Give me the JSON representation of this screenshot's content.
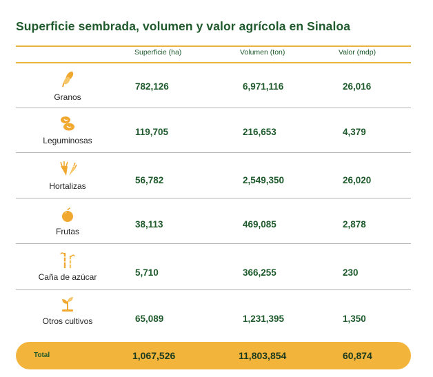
{
  "title": "Superficie sembrada, volumen y valor agrícola en Sinaloa",
  "columns": {
    "superficie": "Superficie (ha)",
    "volumen": "Volumen (ton)",
    "valor": "Valor (mdp)"
  },
  "rows": [
    {
      "label": "Granos",
      "icon": "wheat-grain-icon",
      "superficie": "782,126",
      "volumen": "6,971,116",
      "valor": "26,016"
    },
    {
      "label": "Leguminosas",
      "icon": "beans-icon",
      "superficie": "119,705",
      "volumen": "216,653",
      "valor": "4,379"
    },
    {
      "label": "Hortalizas",
      "icon": "vegetables-icon",
      "superficie": "56,782",
      "volumen": "2,549,350",
      "valor": "26,020"
    },
    {
      "label": "Frutas",
      "icon": "fruit-icon",
      "superficie": "38,113",
      "volumen": "469,085",
      "valor": "2,878"
    },
    {
      "label": "Caña de azúcar",
      "icon": "sugar-cane-icon",
      "superficie": "5,710",
      "volumen": "366,255",
      "valor": "230"
    },
    {
      "label": "Otros cultivos",
      "icon": "seedling-icon",
      "superficie": "65,089",
      "volumen": "1,231,395",
      "valor": "1,350"
    }
  ],
  "total": {
    "label": "Total",
    "superficie": "1,067,526",
    "volumen": "11,803,854",
    "valor": "60,874"
  },
  "colors": {
    "title_green": "#1f5a2c",
    "gold": "#f2b43a",
    "icon_orange": "#f0a830"
  }
}
